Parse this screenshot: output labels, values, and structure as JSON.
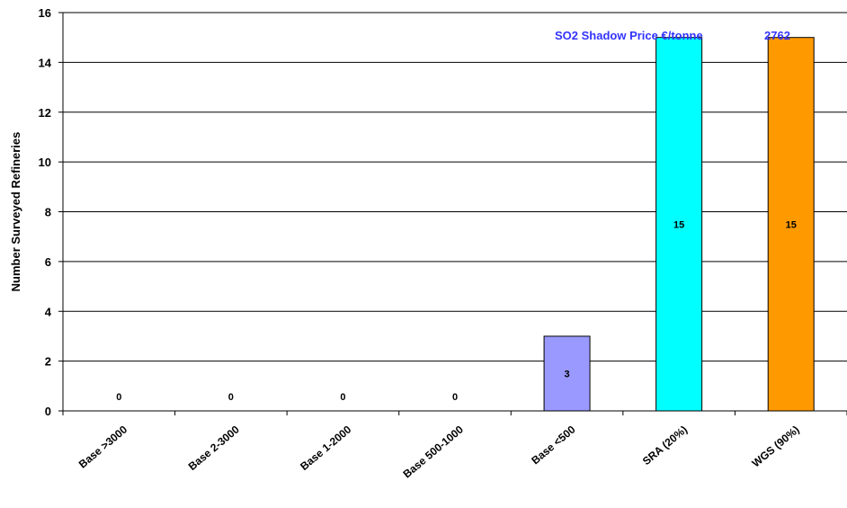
{
  "chart_data": {
    "type": "bar",
    "title": "",
    "xlabel": "",
    "ylabel": "Number Surveyed Refineries",
    "ylim": [
      0,
      16
    ],
    "yticks": [
      0,
      2,
      4,
      6,
      8,
      10,
      12,
      14,
      16
    ],
    "grid": true,
    "legend": "none",
    "categories": [
      "Base >3000",
      "Base 2-3000",
      "Base 1-2000",
      "Base 500-1000",
      "Base <500",
      "SRA (20%)",
      "WGS (90%)"
    ],
    "values": [
      0,
      0,
      0,
      0,
      3,
      15,
      15
    ],
    "data_labels": [
      "0",
      "0",
      "0",
      "0",
      "3",
      "15",
      "15"
    ],
    "bar_colors": [
      "#9999ff",
      "#9999ff",
      "#9999ff",
      "#9999ff",
      "#9999ff",
      "#00ffff",
      "#ff9900"
    ],
    "annotation": {
      "label": "SO2 Shadow Price €/tonne",
      "value": "2762",
      "color": "#3333ff"
    }
  }
}
